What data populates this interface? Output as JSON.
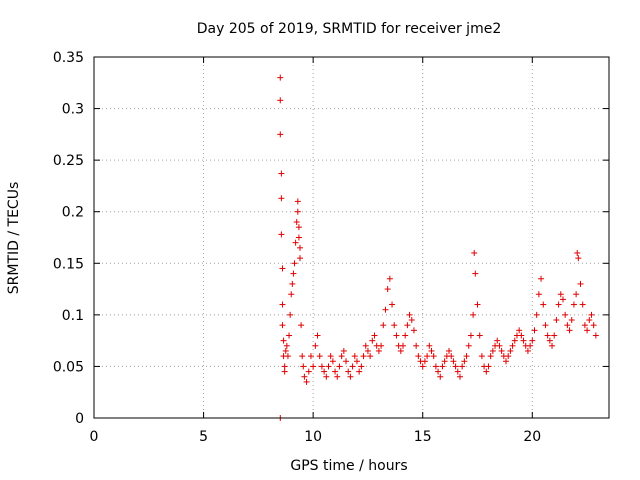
{
  "chart_data": {
    "type": "scatter",
    "title": "Day 205 of 2019, SRMTID for receiver jme2",
    "xlabel": "GPS time / hours",
    "ylabel": "SRMTID / TECUs",
    "xlim": [
      0,
      23.5
    ],
    "ylim": [
      0,
      0.35
    ],
    "xticks": [
      0,
      5,
      10,
      15,
      20
    ],
    "xtick_labels": [
      "0",
      "5",
      "10",
      "15",
      "20"
    ],
    "yticks": [
      0,
      0.05,
      0.1,
      0.15,
      0.2,
      0.25,
      0.3,
      0.35
    ],
    "ytick_labels": [
      "0",
      "0.05",
      "0.1",
      "0.15",
      "0.2",
      "0.25",
      "0.3",
      "0.35"
    ],
    "grid": true,
    "marker": "+",
    "color": "#e00000",
    "series": [
      {
        "name": "SRMTID",
        "x": [
          8.5,
          8.5,
          8.5,
          8.55,
          8.55,
          8.55,
          8.6,
          8.6,
          8.6,
          8.65,
          8.65,
          8.7,
          8.7,
          8.75,
          8.8,
          8.85,
          8.9,
          8.95,
          9.0,
          9.05,
          9.1,
          9.15,
          9.2,
          9.25,
          9.3,
          9.3,
          9.35,
          9.35,
          9.4,
          9.4,
          9.45,
          9.5,
          9.55,
          9.6,
          9.7,
          9.8,
          9.9,
          10.0,
          10.1,
          10.2,
          10.3,
          10.4,
          10.5,
          10.6,
          10.7,
          10.8,
          10.9,
          11.0,
          11.1,
          11.2,
          11.3,
          11.4,
          11.5,
          11.6,
          11.7,
          11.8,
          11.9,
          12.0,
          12.1,
          12.2,
          12.3,
          12.4,
          12.5,
          12.6,
          12.7,
          12.8,
          12.9,
          13.0,
          13.1,
          13.2,
          13.3,
          13.4,
          13.5,
          13.6,
          13.7,
          13.8,
          13.9,
          14.0,
          14.1,
          14.2,
          14.3,
          14.4,
          14.5,
          14.6,
          14.7,
          14.8,
          14.9,
          15.0,
          15.1,
          15.2,
          15.3,
          15.4,
          15.5,
          15.6,
          15.7,
          15.8,
          15.9,
          16.0,
          16.1,
          16.2,
          16.3,
          16.4,
          16.5,
          16.6,
          16.7,
          16.8,
          16.9,
          17.0,
          17.1,
          17.2,
          17.3,
          17.35,
          17.4,
          17.5,
          17.6,
          17.7,
          17.8,
          17.9,
          18.0,
          18.1,
          18.2,
          18.3,
          18.4,
          18.5,
          18.6,
          18.7,
          18.8,
          18.9,
          19.0,
          19.1,
          19.2,
          19.3,
          19.4,
          19.5,
          19.6,
          19.7,
          19.8,
          19.9,
          20.0,
          20.1,
          20.2,
          20.3,
          20.4,
          20.5,
          20.6,
          20.7,
          20.8,
          20.9,
          21.0,
          21.1,
          21.2,
          21.3,
          21.4,
          21.5,
          21.6,
          21.7,
          21.8,
          21.9,
          22.0,
          22.05,
          22.1,
          22.2,
          22.3,
          22.4,
          22.5,
          22.6,
          22.7,
          22.8,
          22.9,
          8.5
        ],
        "y": [
          0.33,
          0.308,
          0.275,
          0.237,
          0.213,
          0.178,
          0.145,
          0.11,
          0.09,
          0.075,
          0.06,
          0.05,
          0.045,
          0.065,
          0.07,
          0.06,
          0.08,
          0.1,
          0.12,
          0.13,
          0.14,
          0.15,
          0.17,
          0.19,
          0.2,
          0.21,
          0.185,
          0.175,
          0.165,
          0.155,
          0.09,
          0.06,
          0.05,
          0.04,
          0.035,
          0.045,
          0.06,
          0.05,
          0.07,
          0.08,
          0.06,
          0.05,
          0.045,
          0.04,
          0.05,
          0.06,
          0.055,
          0.045,
          0.04,
          0.05,
          0.06,
          0.065,
          0.055,
          0.045,
          0.04,
          0.05,
          0.06,
          0.055,
          0.045,
          0.05,
          0.06,
          0.07,
          0.065,
          0.06,
          0.075,
          0.08,
          0.07,
          0.065,
          0.07,
          0.09,
          0.105,
          0.125,
          0.135,
          0.11,
          0.09,
          0.08,
          0.07,
          0.065,
          0.07,
          0.08,
          0.09,
          0.1,
          0.095,
          0.085,
          0.07,
          0.06,
          0.055,
          0.05,
          0.055,
          0.06,
          0.07,
          0.065,
          0.06,
          0.05,
          0.045,
          0.04,
          0.05,
          0.055,
          0.06,
          0.065,
          0.06,
          0.055,
          0.05,
          0.045,
          0.04,
          0.05,
          0.055,
          0.06,
          0.07,
          0.08,
          0.1,
          0.16,
          0.14,
          0.11,
          0.08,
          0.06,
          0.05,
          0.045,
          0.05,
          0.06,
          0.065,
          0.07,
          0.075,
          0.07,
          0.065,
          0.06,
          0.055,
          0.06,
          0.065,
          0.07,
          0.075,
          0.08,
          0.085,
          0.08,
          0.075,
          0.07,
          0.065,
          0.07,
          0.075,
          0.085,
          0.1,
          0.12,
          0.135,
          0.11,
          0.09,
          0.08,
          0.075,
          0.07,
          0.08,
          0.095,
          0.11,
          0.12,
          0.115,
          0.1,
          0.09,
          0.085,
          0.095,
          0.11,
          0.12,
          0.16,
          0.155,
          0.13,
          0.11,
          0.09,
          0.085,
          0.095,
          0.1,
          0.09,
          0.08,
          0.0
        ]
      }
    ]
  }
}
